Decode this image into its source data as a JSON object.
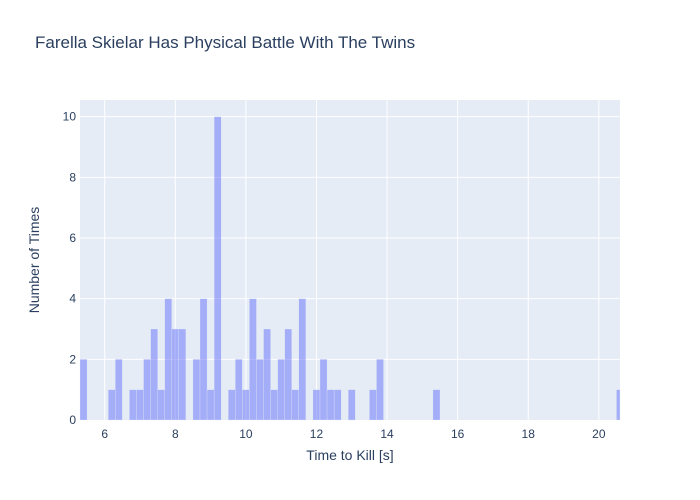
{
  "chart_data": {
    "type": "bar",
    "title": "Farella Skielar Has Physical Battle With The Twins",
    "xlabel": "Time to Kill [s]",
    "ylabel": "Number of Times",
    "xlim": [
      5.3,
      20.6
    ],
    "ylim": [
      0,
      10.55
    ],
    "bin_width": 0.2,
    "x_ticks": [
      6,
      8,
      10,
      12,
      14,
      16,
      18,
      20
    ],
    "y_ticks": [
      0,
      2,
      4,
      6,
      8,
      10
    ],
    "bins": [
      {
        "x": 5.4,
        "y": 2
      },
      {
        "x": 6.2,
        "y": 1
      },
      {
        "x": 6.4,
        "y": 2
      },
      {
        "x": 6.8,
        "y": 1
      },
      {
        "x": 7.0,
        "y": 1
      },
      {
        "x": 7.2,
        "y": 2
      },
      {
        "x": 7.4,
        "y": 3
      },
      {
        "x": 7.6,
        "y": 1
      },
      {
        "x": 7.8,
        "y": 4
      },
      {
        "x": 8.0,
        "y": 3
      },
      {
        "x": 8.2,
        "y": 3
      },
      {
        "x": 8.6,
        "y": 2
      },
      {
        "x": 8.8,
        "y": 4
      },
      {
        "x": 9.0,
        "y": 1
      },
      {
        "x": 9.2,
        "y": 10
      },
      {
        "x": 9.6,
        "y": 1
      },
      {
        "x": 9.8,
        "y": 2
      },
      {
        "x": 10.0,
        "y": 1
      },
      {
        "x": 10.2,
        "y": 4
      },
      {
        "x": 10.4,
        "y": 2
      },
      {
        "x": 10.6,
        "y": 3
      },
      {
        "x": 10.8,
        "y": 1
      },
      {
        "x": 11.0,
        "y": 2
      },
      {
        "x": 11.2,
        "y": 3
      },
      {
        "x": 11.4,
        "y": 1
      },
      {
        "x": 11.6,
        "y": 4
      },
      {
        "x": 12.0,
        "y": 1
      },
      {
        "x": 12.2,
        "y": 2
      },
      {
        "x": 12.4,
        "y": 1
      },
      {
        "x": 12.6,
        "y": 1
      },
      {
        "x": 13.0,
        "y": 1
      },
      {
        "x": 13.6,
        "y": 1
      },
      {
        "x": 13.8,
        "y": 2
      },
      {
        "x": 15.4,
        "y": 1
      },
      {
        "x": 20.6,
        "y": 1
      }
    ],
    "colors": {
      "bar": "#636efa",
      "plot_bg": "#e5ecf6",
      "grid": "#ffffff",
      "text": "#2a3f5f"
    }
  }
}
